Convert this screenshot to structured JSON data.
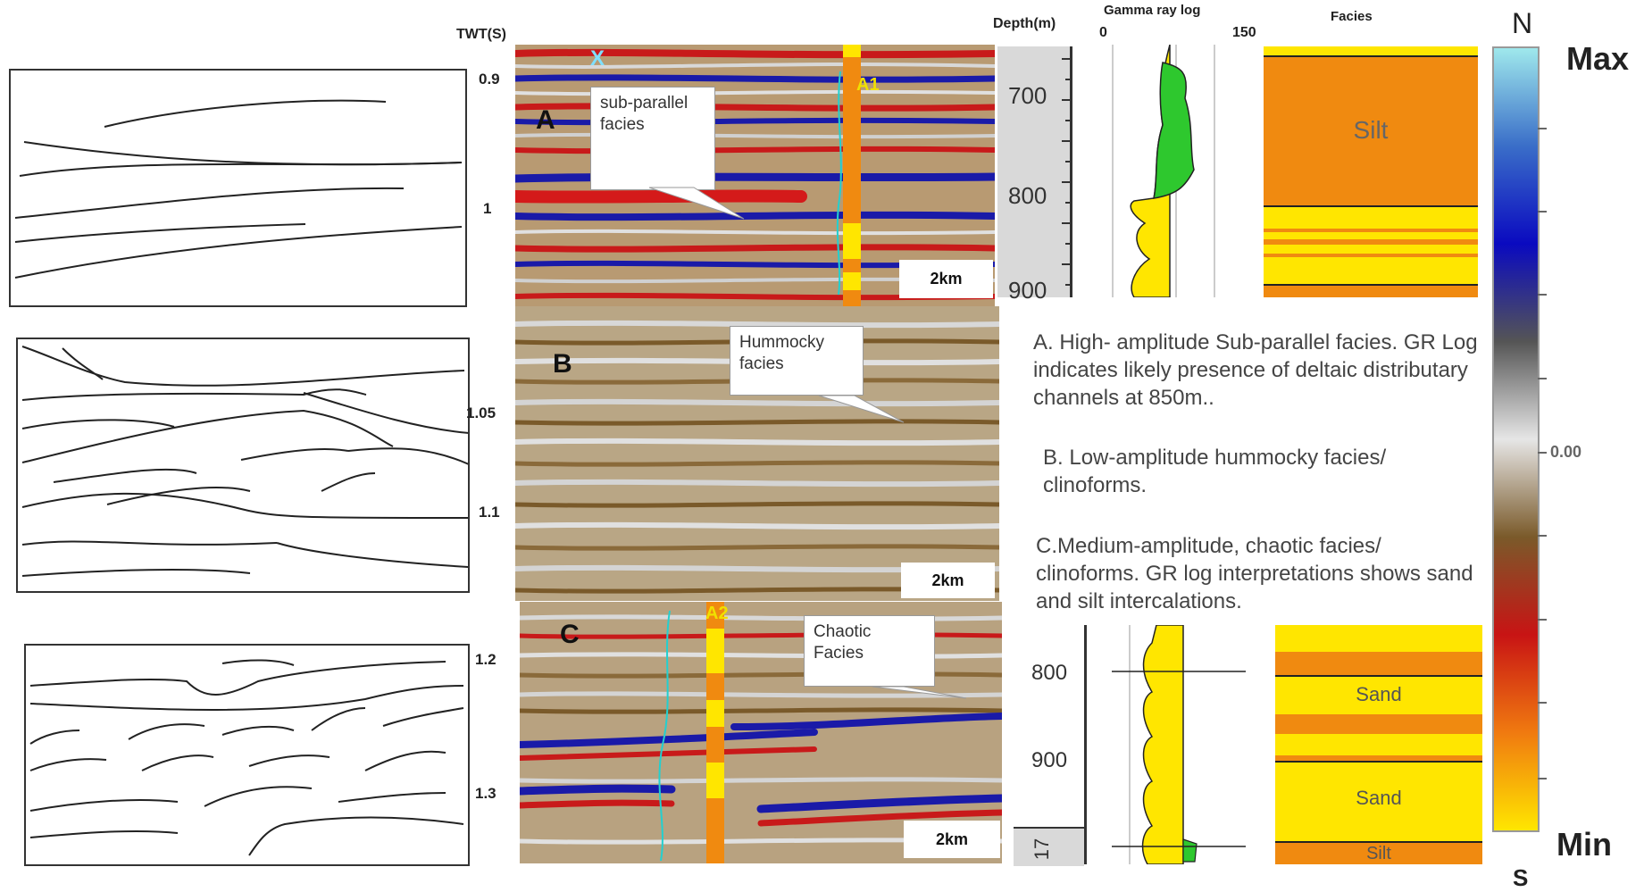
{
  "twt": {
    "label": "TWT(S)",
    "ticks": [
      "0.9",
      "1",
      "1.05",
      "1.1",
      "1.2",
      "1.3"
    ]
  },
  "panels": {
    "a": {
      "letter": "A",
      "callout": "sub-parallel facies",
      "well": "A1",
      "marker": "X",
      "scale": "2km"
    },
    "b": {
      "letter": "B",
      "callout": "Hummocky facies",
      "scale": "2km"
    },
    "c": {
      "letter": "C",
      "callout": "Chaotic Facies",
      "well": "A2",
      "scale": "2km"
    }
  },
  "log_top": {
    "depth_header": "Depth(m)",
    "depth_ticks": [
      "700",
      "800",
      "900"
    ],
    "gr_header": "Gamma ray log",
    "gr_min": "0",
    "gr_max": "150",
    "facies_header": "Facies",
    "facies_labels": [
      "Silt"
    ]
  },
  "log_bottom": {
    "depth_ticks": [
      "800",
      "900"
    ],
    "side_label": "17",
    "facies_labels": [
      "Sand",
      "Sand",
      "Silt"
    ]
  },
  "descriptions": {
    "a": "A. High- amplitude Sub-parallel facies. GR Log indicates likely presence of deltaic distributary channels at 850m..",
    "b": "B. Low-amplitude hummocky facies/ clinoforms.",
    "c": "C.Medium-amplitude, chaotic facies/ clinoforms. GR log interpretations shows sand and silt intercalations."
  },
  "colorbar": {
    "top_letter": "N",
    "bottom_letter": "S",
    "max_label": "Max",
    "min_label": "Min",
    "mid_label": "0.00",
    "colors": [
      "#9fe8ec",
      "#3a6ec8",
      "#0a0ac0",
      "#555555",
      "#e6e6e6",
      "#7a5a2a",
      "#c81414",
      "#f07a10",
      "#ffe600"
    ]
  }
}
